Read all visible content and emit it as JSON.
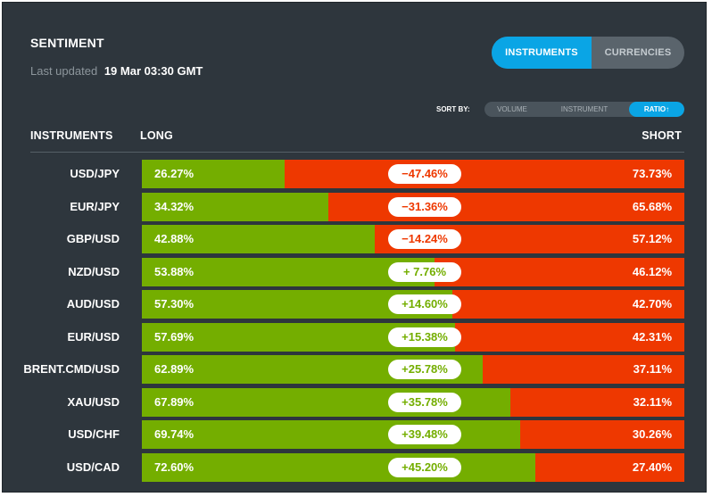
{
  "header": {
    "title": "SENTIMENT",
    "last_updated_label": "Last updated",
    "last_updated_value": "19 Mar 03:30 GMT"
  },
  "tabs": [
    {
      "label": "INSTRUMENTS",
      "active": true
    },
    {
      "label": "CURRENCIES",
      "active": false
    }
  ],
  "sort": {
    "label": "SORT BY:",
    "options": [
      {
        "label": "VOLUME",
        "active": false
      },
      {
        "label": "INSTRUMENT",
        "active": false
      },
      {
        "label": "RATIO↑",
        "active": true
      }
    ]
  },
  "columns": {
    "instruments": "INSTRUMENTS",
    "long": "LONG",
    "short": "SHORT"
  },
  "colors": {
    "long": "#74ae00",
    "short": "#ee3800",
    "accent": "#0aa5e5",
    "panel": "#2e363d"
  },
  "rows": [
    {
      "instrument": "USD/JPY",
      "long": "26.27%",
      "short": "73.73%",
      "ratio": "−47.46%",
      "long_pct": 26.27,
      "sign": "neg"
    },
    {
      "instrument": "EUR/JPY",
      "long": "34.32%",
      "short": "65.68%",
      "ratio": "−31.36%",
      "long_pct": 34.32,
      "sign": "neg"
    },
    {
      "instrument": "GBP/USD",
      "long": "42.88%",
      "short": "57.12%",
      "ratio": "−14.24%",
      "long_pct": 42.88,
      "sign": "neg"
    },
    {
      "instrument": "NZD/USD",
      "long": "53.88%",
      "short": "46.12%",
      "ratio": "+ 7.76%",
      "long_pct": 53.88,
      "sign": "pos"
    },
    {
      "instrument": "AUD/USD",
      "long": "57.30%",
      "short": "42.70%",
      "ratio": "+14.60%",
      "long_pct": 57.3,
      "sign": "pos"
    },
    {
      "instrument": "EUR/USD",
      "long": "57.69%",
      "short": "42.31%",
      "ratio": "+15.38%",
      "long_pct": 57.69,
      "sign": "pos"
    },
    {
      "instrument": "BRENT.CMD/USD",
      "long": "62.89%",
      "short": "37.11%",
      "ratio": "+25.78%",
      "long_pct": 62.89,
      "sign": "pos"
    },
    {
      "instrument": "XAU/USD",
      "long": "67.89%",
      "short": "32.11%",
      "ratio": "+35.78%",
      "long_pct": 67.89,
      "sign": "pos"
    },
    {
      "instrument": "USD/CHF",
      "long": "69.74%",
      "short": "30.26%",
      "ratio": "+39.48%",
      "long_pct": 69.74,
      "sign": "pos"
    },
    {
      "instrument": "USD/CAD",
      "long": "72.60%",
      "short": "27.40%",
      "ratio": "+45.20%",
      "long_pct": 72.6,
      "sign": "pos"
    }
  ]
}
